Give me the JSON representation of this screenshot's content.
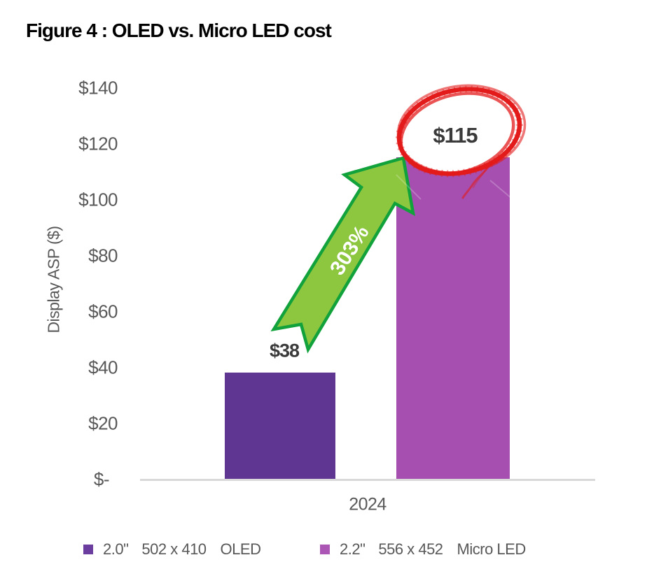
{
  "title": "Figure 4 : OLED vs. Micro LED cost",
  "chart_data": {
    "type": "bar",
    "x_categories": [
      "2024"
    ],
    "series": [
      {
        "name": "OLED",
        "size": "2.0\"",
        "resolution": "502 x 410",
        "values": [
          38
        ],
        "data_label": "$38",
        "color": "#5f3792"
      },
      {
        "name": "Micro LED",
        "size": "2.2\"",
        "resolution": "556 x 452",
        "values": [
          115
        ],
        "data_label": "$115",
        "color": "#a64fb0"
      }
    ],
    "ylabel": "Display ASP ($)",
    "ylim": [
      0,
      140
    ],
    "ytick_interval": 20,
    "yticks_top_to_bottom": [
      "$140",
      "$120",
      "$100",
      "$80",
      "$60",
      "$40",
      "$20",
      "$-"
    ],
    "grid": "off",
    "legend_position": "bottom",
    "annotations": {
      "growth_arrow_label": "303%",
      "arrow_fill": "#8dc63f",
      "arrow_stroke": "#12a23c",
      "circled_value": "$115",
      "circle_color": "#e31b1b"
    }
  },
  "x_axis": {
    "label": "2024"
  },
  "legend": {
    "items": [
      {
        "color": "#6a3d9e",
        "size": "2.0\"",
        "resolution": "502 x 410",
        "tech": "OLED"
      },
      {
        "color": "#ab55b5",
        "size": "2.2\"",
        "resolution": "556 x 452",
        "tech": "Micro LED"
      }
    ]
  }
}
